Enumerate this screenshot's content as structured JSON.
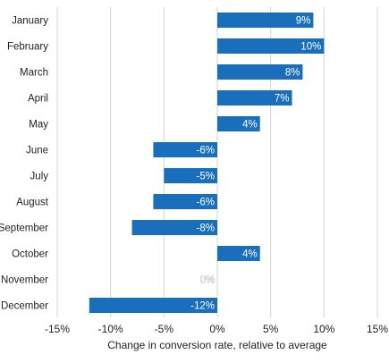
{
  "chart_data": {
    "type": "bar",
    "orientation": "horizontal",
    "categories": [
      "January",
      "February",
      "March",
      "April",
      "May",
      "June",
      "July",
      "August",
      "September",
      "October",
      "November",
      "December"
    ],
    "values": [
      9,
      10,
      8,
      7,
      4,
      -6,
      -5,
      -6,
      -8,
      4,
      0,
      -12
    ],
    "value_labels": [
      "9%",
      "10%",
      "8%",
      "7%",
      "4%",
      "-6%",
      "-5%",
      "-6%",
      "-8%",
      "4%",
      "0%",
      "-12%"
    ],
    "xlabel": "Change in conversion rate, relative to average",
    "ylabel": "",
    "xlim": [
      -15,
      15
    ],
    "xticks": [
      -15,
      -10,
      -5,
      0,
      5,
      10,
      15
    ],
    "xtick_labels": [
      "-15%",
      "-10%",
      "-5%",
      "0%",
      "5%",
      "10%",
      "15%"
    ],
    "grid": "vertical",
    "legend": "none",
    "colors": {
      "bar": "#1a6fbc",
      "grid": "#d4d4d4",
      "text": "#222222",
      "value_text": "#ffffff"
    }
  }
}
